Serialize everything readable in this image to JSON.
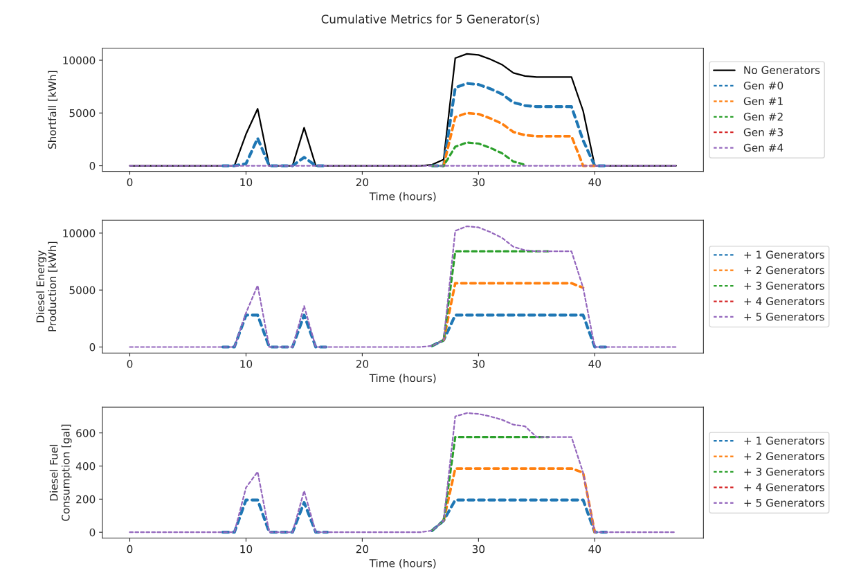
{
  "chart_data": [
    {
      "type": "line",
      "title": "Cumulative Metrics for 5 Generator(s)",
      "xlabel": "Time (hours)",
      "ylabel": "Shortfall [kWh]",
      "x": [
        0,
        1,
        2,
        3,
        4,
        5,
        6,
        7,
        8,
        9,
        10,
        11,
        12,
        13,
        14,
        15,
        16,
        17,
        18,
        19,
        20,
        21,
        22,
        23,
        24,
        25,
        26,
        27,
        28,
        29,
        30,
        31,
        32,
        33,
        34,
        35,
        36,
        37,
        38,
        39,
        40,
        41,
        42,
        43,
        44,
        45,
        46,
        47
      ],
      "xlim": [
        -2.35,
        49.35
      ],
      "xticks": [
        0,
        10,
        20,
        30,
        40
      ],
      "ylim": [
        -530,
        11130
      ],
      "yticks": [
        0,
        5000,
        10000
      ],
      "legend": "right",
      "grid": false,
      "series": [
        {
          "name": "No Generators",
          "color": "#000000",
          "line_style": "solid",
          "values": [
            0,
            0,
            0,
            0,
            0,
            0,
            0,
            0,
            0,
            0,
            3000,
            5400,
            0,
            0,
            0,
            3600,
            0,
            0,
            0,
            0,
            0,
            0,
            0,
            0,
            0,
            0,
            100,
            600,
            10200,
            10600,
            10500,
            10100,
            9600,
            8800,
            8500,
            8400,
            8400,
            8400,
            8400,
            5200,
            0,
            0,
            0,
            0,
            0,
            0,
            0,
            0
          ]
        },
        {
          "name": "Gen #0",
          "color": "#1f77b4",
          "line_style": "dashed",
          "values": [
            null,
            null,
            null,
            null,
            null,
            null,
            null,
            null,
            0,
            0,
            200,
            2600,
            0,
            0,
            0,
            800,
            0,
            0,
            null,
            null,
            null,
            null,
            null,
            null,
            null,
            null,
            0,
            0,
            7400,
            7800,
            7700,
            7300,
            6800,
            6000,
            5700,
            5600,
            5600,
            5600,
            5600,
            2400,
            0,
            0,
            null,
            null,
            null,
            null,
            null,
            null
          ]
        },
        {
          "name": "Gen #1",
          "color": "#ff7f0e",
          "line_style": "dashed",
          "values": [
            null,
            null,
            null,
            null,
            null,
            null,
            null,
            null,
            null,
            null,
            null,
            null,
            null,
            null,
            null,
            null,
            null,
            null,
            null,
            null,
            null,
            null,
            null,
            null,
            null,
            null,
            null,
            0,
            4600,
            5000,
            4900,
            4500,
            4000,
            3200,
            2900,
            2800,
            2800,
            2800,
            2800,
            0,
            0,
            null,
            null,
            null,
            null,
            null,
            null,
            null
          ]
        },
        {
          "name": "Gen #2",
          "color": "#2ca02c",
          "line_style": "dashed",
          "values": [
            null,
            null,
            null,
            null,
            null,
            null,
            null,
            null,
            null,
            null,
            null,
            null,
            null,
            null,
            null,
            null,
            null,
            null,
            null,
            null,
            null,
            null,
            null,
            null,
            null,
            null,
            0,
            0,
            1800,
            2200,
            2100,
            1700,
            1200,
            400,
            100,
            null,
            null,
            null,
            null,
            null,
            null,
            null,
            null,
            null,
            null,
            null,
            null,
            null
          ]
        },
        {
          "name": "Gen #3",
          "color": "#d62728",
          "line_style": "dashed",
          "values": [
            null,
            null,
            null,
            null,
            null,
            null,
            null,
            null,
            null,
            null,
            null,
            null,
            null,
            null,
            null,
            null,
            null,
            null,
            null,
            null,
            null,
            null,
            null,
            null,
            null,
            null,
            null,
            null,
            null,
            null,
            null,
            null,
            null,
            null,
            null,
            null,
            null,
            null,
            null,
            null,
            null,
            null,
            null,
            null,
            null,
            null,
            null,
            null
          ]
        },
        {
          "name": "Gen #4",
          "color": "#9467bd",
          "line_style": "dashed",
          "values": [
            0,
            0,
            0,
            0,
            0,
            0,
            0,
            0,
            0,
            0,
            0,
            0,
            0,
            0,
            0,
            0,
            0,
            0,
            0,
            0,
            0,
            0,
            0,
            0,
            0,
            0,
            0,
            0,
            0,
            0,
            0,
            0,
            0,
            0,
            0,
            0,
            0,
            0,
            0,
            0,
            0,
            0,
            0,
            0,
            0,
            0,
            0,
            0
          ]
        }
      ]
    },
    {
      "type": "line",
      "xlabel": "Time (hours)",
      "ylabel": "Diesel Energy\nProduction [kWh]",
      "x": [
        0,
        1,
        2,
        3,
        4,
        5,
        6,
        7,
        8,
        9,
        10,
        11,
        12,
        13,
        14,
        15,
        16,
        17,
        18,
        19,
        20,
        21,
        22,
        23,
        24,
        25,
        26,
        27,
        28,
        29,
        30,
        31,
        32,
        33,
        34,
        35,
        36,
        37,
        38,
        39,
        40,
        41,
        42,
        43,
        44,
        45,
        46,
        47
      ],
      "xlim": [
        -2.35,
        49.35
      ],
      "xticks": [
        0,
        10,
        20,
        30,
        40
      ],
      "ylim": [
        -530,
        11130
      ],
      "yticks": [
        0,
        5000,
        10000
      ],
      "legend": "right",
      "grid": false,
      "series": [
        {
          "name": "+ 1 Generators",
          "color": "#1f77b4",
          "line_style": "dashed",
          "values": [
            null,
            null,
            null,
            null,
            null,
            null,
            null,
            null,
            0,
            0,
            2800,
            2800,
            0,
            0,
            0,
            2800,
            0,
            0,
            null,
            null,
            null,
            null,
            null,
            null,
            null,
            null,
            100,
            600,
            2800,
            2800,
            2800,
            2800,
            2800,
            2800,
            2800,
            2800,
            2800,
            2800,
            2800,
            2800,
            0,
            0,
            null,
            null,
            null,
            null,
            null,
            null
          ]
        },
        {
          "name": "+ 2 Generators",
          "color": "#ff7f0e",
          "line_style": "dashed",
          "values": [
            null,
            null,
            null,
            null,
            null,
            null,
            null,
            null,
            null,
            null,
            null,
            null,
            null,
            null,
            null,
            null,
            null,
            null,
            null,
            null,
            null,
            null,
            null,
            null,
            null,
            null,
            null,
            600,
            5600,
            5600,
            5600,
            5600,
            5600,
            5600,
            5600,
            5600,
            5600,
            5600,
            5600,
            5200,
            null,
            null,
            null,
            null,
            null,
            null,
            null,
            null
          ]
        },
        {
          "name": "+ 3 Generators",
          "color": "#2ca02c",
          "line_style": "dashed",
          "values": [
            null,
            null,
            null,
            null,
            null,
            null,
            null,
            null,
            null,
            null,
            null,
            null,
            null,
            null,
            null,
            null,
            null,
            null,
            null,
            null,
            null,
            null,
            null,
            null,
            null,
            null,
            100,
            600,
            8400,
            8400,
            8400,
            8400,
            8400,
            8400,
            8400,
            8400,
            8400,
            null,
            null,
            null,
            null,
            null,
            null,
            null,
            null,
            null,
            null,
            null
          ]
        },
        {
          "name": "+ 4 Generators",
          "color": "#d62728",
          "line_style": "dashed",
          "values": [
            null,
            null,
            null,
            null,
            null,
            null,
            null,
            null,
            null,
            null,
            null,
            null,
            null,
            null,
            null,
            null,
            null,
            null,
            null,
            null,
            null,
            null,
            null,
            null,
            null,
            null,
            null,
            null,
            null,
            null,
            null,
            null,
            null,
            null,
            null,
            null,
            null,
            null,
            null,
            null,
            null,
            null,
            null,
            null,
            null,
            null,
            null,
            null
          ]
        },
        {
          "name": "+ 5 Generators",
          "color": "#9467bd",
          "line_style": "dashed",
          "values": [
            0,
            0,
            0,
            0,
            0,
            0,
            0,
            0,
            0,
            0,
            3000,
            5400,
            0,
            0,
            0,
            3600,
            0,
            0,
            0,
            0,
            0,
            0,
            0,
            0,
            0,
            0,
            100,
            600,
            10200,
            10600,
            10500,
            10100,
            9600,
            8800,
            8500,
            8400,
            8400,
            8400,
            8400,
            5200,
            0,
            0,
            0,
            0,
            0,
            0,
            0,
            0
          ]
        }
      ]
    },
    {
      "type": "line",
      "xlabel": "Time (hours)",
      "ylabel": "Diesel Fuel\nConsumption [gal]",
      "x": [
        0,
        1,
        2,
        3,
        4,
        5,
        6,
        7,
        8,
        9,
        10,
        11,
        12,
        13,
        14,
        15,
        16,
        17,
        18,
        19,
        20,
        21,
        22,
        23,
        24,
        25,
        26,
        27,
        28,
        29,
        30,
        31,
        32,
        33,
        34,
        35,
        36,
        37,
        38,
        39,
        40,
        41,
        42,
        43,
        44,
        45,
        46,
        47
      ],
      "xlim": [
        -2.35,
        49.35
      ],
      "xticks": [
        0,
        10,
        20,
        30,
        40
      ],
      "ylim": [
        -36,
        756
      ],
      "yticks": [
        0,
        200,
        400,
        600
      ],
      "legend": "right",
      "grid": false,
      "series": [
        {
          "name": "+ 1 Generators",
          "color": "#1f77b4",
          "line_style": "dashed",
          "values": [
            null,
            null,
            null,
            null,
            null,
            null,
            null,
            null,
            0,
            0,
            195,
            195,
            0,
            0,
            0,
            180,
            0,
            0,
            null,
            null,
            null,
            null,
            null,
            null,
            null,
            null,
            10,
            70,
            195,
            195,
            195,
            195,
            195,
            195,
            195,
            195,
            195,
            195,
            195,
            195,
            0,
            0,
            null,
            null,
            null,
            null,
            null,
            null
          ]
        },
        {
          "name": "+ 2 Generators",
          "color": "#ff7f0e",
          "line_style": "dashed",
          "values": [
            null,
            null,
            null,
            null,
            null,
            null,
            null,
            null,
            null,
            null,
            null,
            null,
            null,
            null,
            null,
            null,
            null,
            null,
            null,
            null,
            null,
            null,
            null,
            null,
            null,
            null,
            null,
            70,
            385,
            385,
            385,
            385,
            385,
            385,
            385,
            385,
            385,
            385,
            385,
            360,
            0,
            null,
            null,
            null,
            null,
            null,
            null,
            null
          ]
        },
        {
          "name": "+ 3 Generators",
          "color": "#2ca02c",
          "line_style": "dashed",
          "values": [
            null,
            null,
            null,
            null,
            null,
            null,
            null,
            null,
            null,
            null,
            null,
            null,
            null,
            null,
            null,
            null,
            null,
            null,
            null,
            null,
            null,
            null,
            null,
            null,
            null,
            null,
            10,
            70,
            575,
            575,
            575,
            575,
            575,
            575,
            575,
            575,
            575,
            null,
            null,
            null,
            null,
            null,
            null,
            null,
            null,
            null,
            null,
            null
          ]
        },
        {
          "name": "+ 4 Generators",
          "color": "#d62728",
          "line_style": "dashed",
          "values": [
            null,
            null,
            null,
            null,
            null,
            null,
            null,
            null,
            null,
            null,
            null,
            null,
            null,
            null,
            null,
            null,
            null,
            null,
            null,
            null,
            null,
            null,
            null,
            null,
            null,
            null,
            null,
            null,
            null,
            null,
            null,
            null,
            null,
            null,
            null,
            null,
            null,
            null,
            null,
            null,
            null,
            null,
            null,
            null,
            null,
            null,
            null,
            null
          ]
        },
        {
          "name": "+ 5 Generators",
          "color": "#9467bd",
          "line_style": "dashed",
          "values": [
            0,
            0,
            0,
            0,
            0,
            0,
            0,
            0,
            0,
            0,
            270,
            365,
            0,
            0,
            0,
            250,
            0,
            0,
            0,
            0,
            0,
            0,
            0,
            0,
            0,
            0,
            10,
            70,
            700,
            720,
            715,
            700,
            680,
            650,
            640,
            575,
            575,
            575,
            575,
            360,
            0,
            0,
            0,
            0,
            0,
            0,
            0,
            0
          ]
        }
      ]
    }
  ]
}
